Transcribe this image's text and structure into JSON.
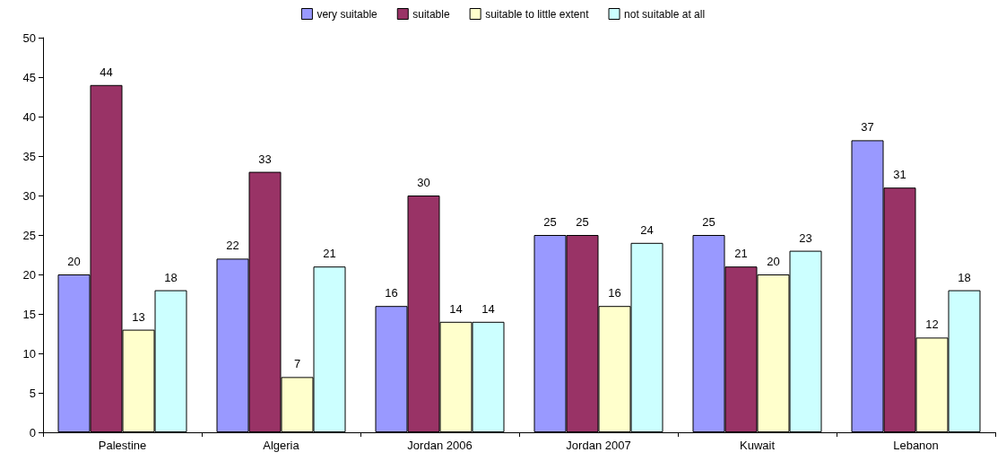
{
  "chart_data": {
    "type": "bar",
    "categories": [
      "Palestine",
      "Algeria",
      "Jordan 2006",
      "Jordan 2007",
      "Kuwait",
      "Lebanon"
    ],
    "series": [
      {
        "name": "very suitable",
        "color": "#9999ff",
        "values": [
          20,
          22,
          16,
          25,
          25,
          37
        ]
      },
      {
        "name": "suitable",
        "color": "#993366",
        "values": [
          44,
          33,
          30,
          25,
          21,
          31
        ]
      },
      {
        "name": "suitable to little extent",
        "color": "#ffffcc",
        "values": [
          13,
          7,
          14,
          16,
          20,
          12
        ]
      },
      {
        "name": "not suitable at all",
        "color": "#ccffff",
        "values": [
          18,
          21,
          14,
          24,
          23,
          18
        ]
      }
    ],
    "ylim": [
      0,
      50
    ],
    "yticks": [
      0,
      5,
      10,
      15,
      20,
      25,
      30,
      35,
      40,
      45,
      50
    ],
    "grid": false,
    "legend": "top",
    "data_labels": true
  }
}
